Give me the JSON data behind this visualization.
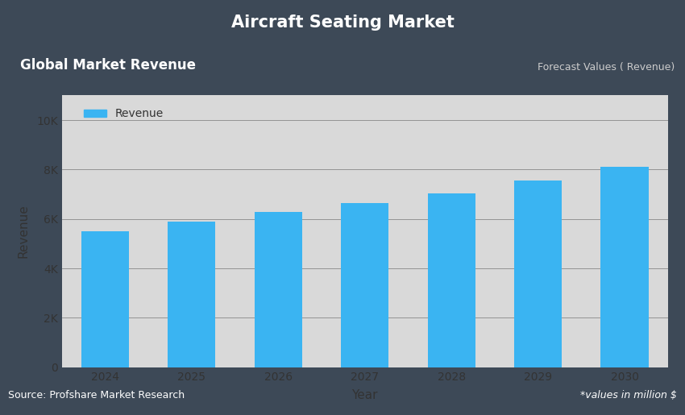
{
  "title": "Aircraft Seating Market",
  "subtitle_left": "Global Market Revenue",
  "subtitle_right": "Forecast Values ( Revenue)",
  "xlabel": "Year",
  "ylabel": "Revenue",
  "source_text": "Source: Profshare Market Research",
  "footnote_text": "*values in million $",
  "legend_label": "Revenue",
  "years": [
    2024,
    2025,
    2026,
    2027,
    2028,
    2029,
    2030
  ],
  "values": [
    5500,
    5900,
    6300,
    6650,
    7050,
    7550,
    8100
  ],
  "bar_color": "#3ab4f2",
  "outer_bg": "#3d4957",
  "plot_bg": "#d9d9d9",
  "header_left_bg": "#5b7fb8",
  "ylim": [
    0,
    11000
  ],
  "yticks": [
    0,
    2000,
    4000,
    6000,
    8000,
    10000
  ],
  "ytick_labels": [
    "0",
    "2K",
    "4K",
    "6K",
    "8K",
    "10K"
  ],
  "grid_color": "#888888",
  "title_color": "#ffffff",
  "subtitle_left_color": "#ffffff",
  "subtitle_right_color": "#cccccc",
  "axis_label_color": "#333333",
  "tick_color": "#333333",
  "source_color": "#ffffff",
  "footnote_color": "#ffffff"
}
